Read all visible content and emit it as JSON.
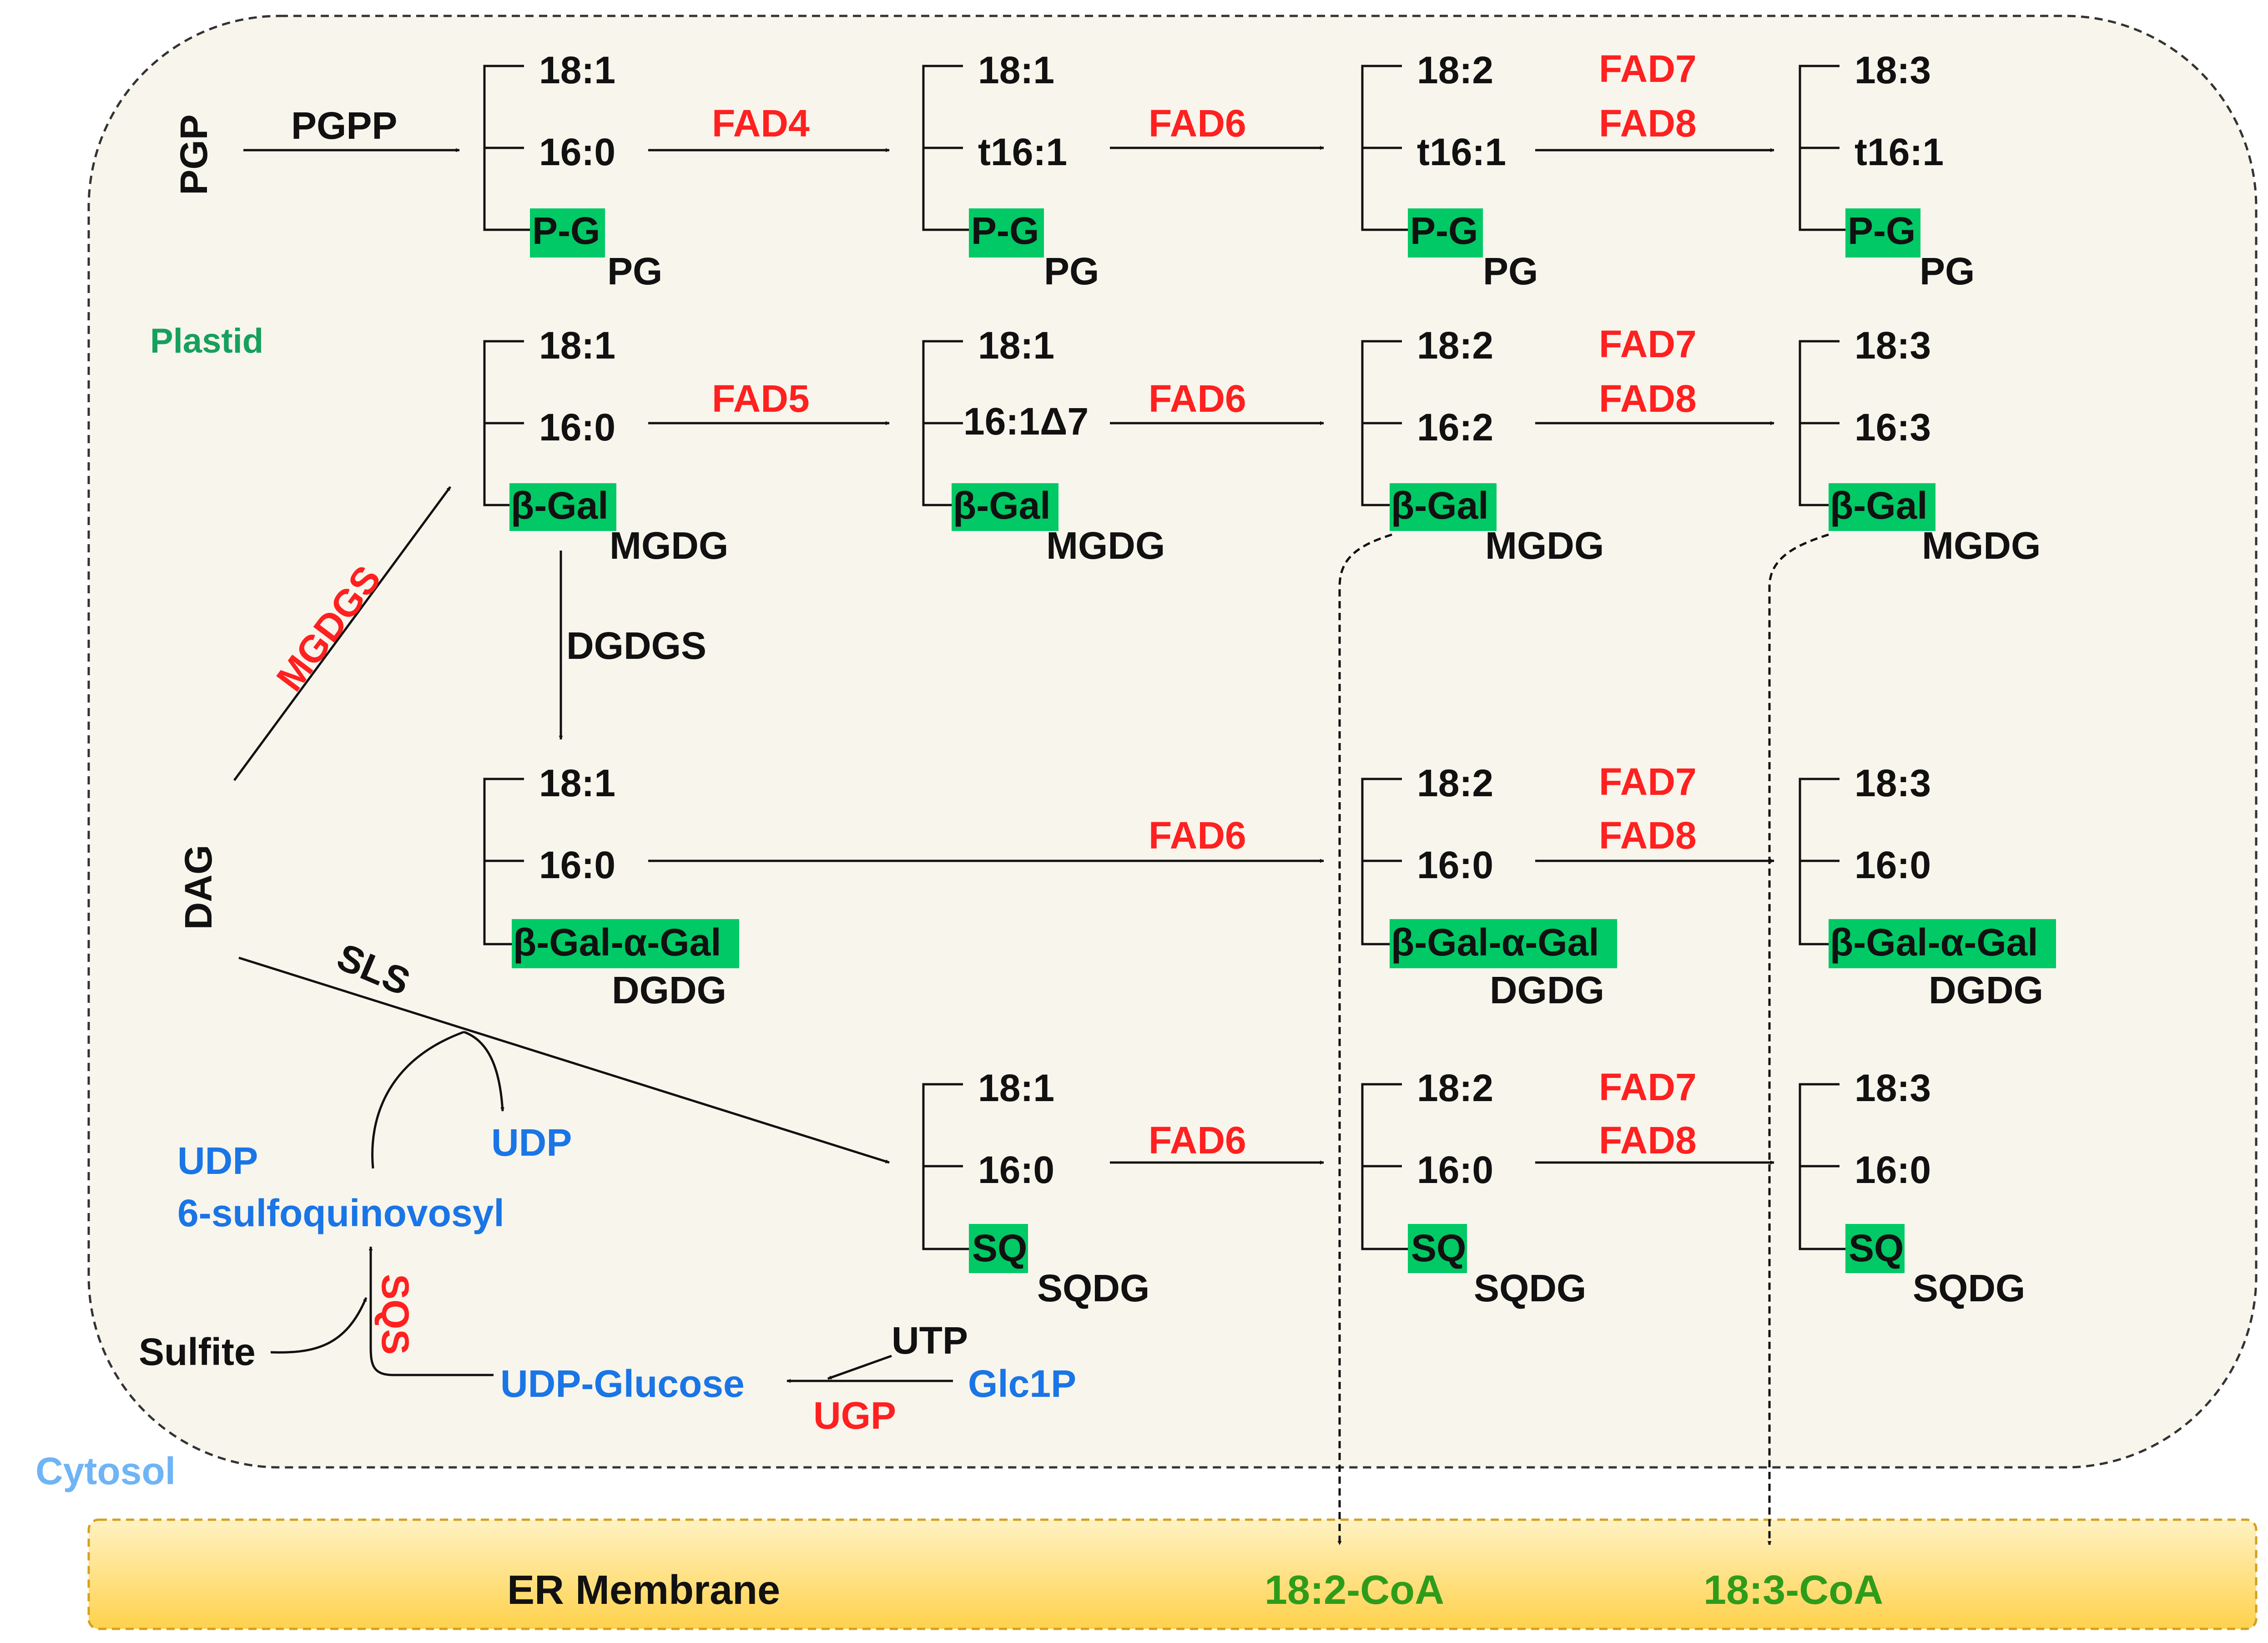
{
  "colors": {
    "plastid_fill": "#f8f5ec",
    "er_fill": "#ffd966",
    "headgroup_fill": "#00c966",
    "enzyme": "#ff2020",
    "substrate_blue": "#1a75e6",
    "plastid_label": "#16a05d",
    "cytosol_label": "#6fb4f5",
    "coa_label": "#2e9c1a",
    "text": "#111111"
  },
  "compartments": {
    "plastid": "Plastid",
    "cytosol": "Cytosol",
    "er": "ER Membrane"
  },
  "side_labels": {
    "pgp": "PGP",
    "dag": "DAG"
  },
  "enzymes": {
    "pgpp": "PGPP",
    "fad4": "FAD4",
    "fad5": "FAD5",
    "fad6": "FAD6",
    "fad7": "FAD7",
    "fad8": "FAD8",
    "mgdgs": "MGDGS",
    "dgdgs": "DGDGS",
    "sls": "SLS",
    "sqs": "SQS",
    "ugp": "UGP"
  },
  "metabolites": {
    "udp": "UDP",
    "udp_sq_1": "UDP",
    "udp_sq_2": "6-sulfoquinovosyl",
    "sulfite": "Sulfite",
    "udp_glucose": "UDP-Glucose",
    "utp": "UTP",
    "glc1p": "Glc1P",
    "coa_182": "18:2-CoA",
    "coa_183": "18:3-CoA"
  },
  "lipids": {
    "pg": [
      {
        "top": "18:1",
        "mid": "16:0",
        "head": "P-G",
        "cls": "PG"
      },
      {
        "top": "18:1",
        "mid": "t16:1",
        "head": "P-G",
        "cls": "PG"
      },
      {
        "top": "18:2",
        "mid": "t16:1",
        "head": "P-G",
        "cls": "PG"
      },
      {
        "top": "18:3",
        "mid": "t16:1",
        "head": "P-G",
        "cls": "PG"
      }
    ],
    "mgdg": [
      {
        "top": "18:1",
        "mid": "16:0",
        "head": "β-Gal",
        "cls": "MGDG"
      },
      {
        "top": "18:1",
        "mid": "16:1Δ7",
        "head": "β-Gal",
        "cls": "MGDG"
      },
      {
        "top": "18:2",
        "mid": "16:2",
        "head": "β-Gal",
        "cls": "MGDG"
      },
      {
        "top": "18:3",
        "mid": "16:3",
        "head": "β-Gal",
        "cls": "MGDG"
      }
    ],
    "dgdg": [
      {
        "top": "18:1",
        "mid": "16:0",
        "head": "β-Gal-α-Gal",
        "cls": "DGDG"
      },
      {
        "top": "18:2",
        "mid": "16:0",
        "head": "β-Gal-α-Gal",
        "cls": "DGDG"
      },
      {
        "top": "18:3",
        "mid": "16:0",
        "head": "β-Gal-α-Gal",
        "cls": "DGDG"
      }
    ],
    "sqdg": [
      {
        "top": "18:1",
        "mid": "16:0",
        "head": "SQ",
        "cls": "SQDG"
      },
      {
        "top": "18:2",
        "mid": "16:0",
        "head": "SQ",
        "cls": "SQDG"
      },
      {
        "top": "18:3",
        "mid": "16:0",
        "head": "SQ",
        "cls": "SQDG"
      }
    ]
  }
}
